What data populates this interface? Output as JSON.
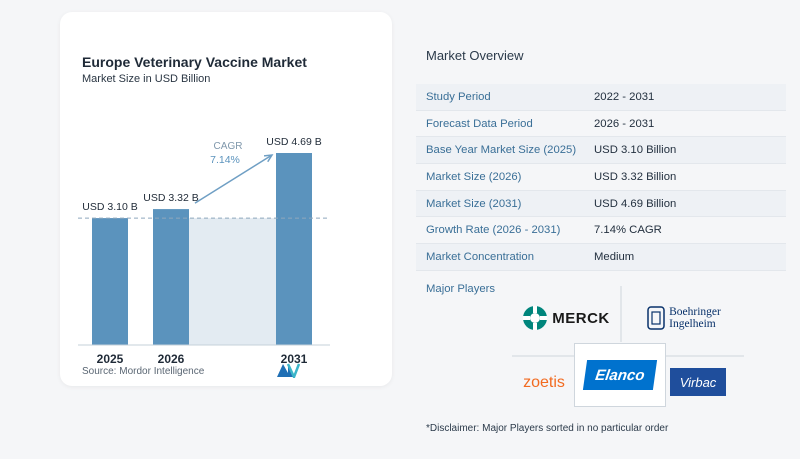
{
  "chart_card": {
    "title": "Europe Veterinary Vaccine Market",
    "subtitle": "Market Size in USD Billion",
    "source": "Source:  Mordor Intelligence"
  },
  "chart_data": {
    "type": "bar",
    "title": "Europe Veterinary Vaccine Market",
    "subtitle": "Market Size in USD Billion",
    "categories": [
      "2025",
      "2026",
      "2031"
    ],
    "values": [
      3.1,
      3.32,
      4.69
    ],
    "data_labels": [
      "USD 3.10 B",
      "USD 3.32 B",
      "USD 4.69 B"
    ],
    "ylim": [
      0,
      4.69
    ],
    "grid": false,
    "annotation": {
      "label": "CAGR",
      "value": "7.14%"
    },
    "bar_color": "#5b93bd",
    "shade_color": "#e3ebf2"
  },
  "overview": {
    "title": "Market Overview",
    "rows": [
      {
        "label": "Study Period",
        "value": "2022 - 2031"
      },
      {
        "label": "Forecast Data Period",
        "value": "2026 - 2031"
      },
      {
        "label": "Base Year Market Size (2025)",
        "value": "USD 3.10 Billion"
      },
      {
        "label": "Market Size (2026)",
        "value": "USD 3.32 Billion"
      },
      {
        "label": "Market Size (2031)",
        "value": "USD 4.69 Billion"
      },
      {
        "label": "Growth Rate (2026 - 2031)",
        "value": "7.14% CAGR"
      },
      {
        "label": "Market Concentration",
        "value": "Medium"
      }
    ],
    "players_label": "Major Players",
    "players": {
      "merck": "MERCK",
      "boehringer": [
        "Boehringer",
        "Ingelheim"
      ],
      "zoetis": "zoetis",
      "elanco": "Elanco",
      "virbac": "Virbac"
    },
    "disclaimer": "*Disclaimer: Major Players sorted in no particular order"
  },
  "colors": {
    "accent": "#3a6f97",
    "bar": "#5b93bd",
    "merck": "#00857c",
    "elanco": "#0072ce",
    "virbac": "#1f4e9c",
    "zoetis": "#f26b21"
  }
}
